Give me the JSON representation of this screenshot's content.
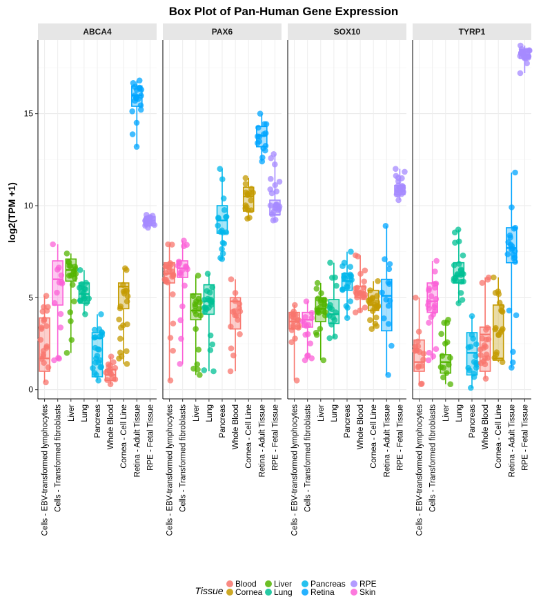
{
  "chart_data": {
    "type": "box",
    "title": "Box Plot of Pan-Human Gene Expression",
    "xlabel": "",
    "ylabel": "log2(TPM +1)",
    "ylim": [
      -0.5,
      19
    ],
    "yticks": [
      0,
      5,
      10,
      15
    ],
    "facets": [
      "ABCA4",
      "PAX6",
      "SOX10",
      "TYRP1"
    ],
    "categories": [
      "Cells - EBV-transformed lymphocytes",
      "Cells - Transformed fibroblasts",
      "Liver",
      "Lung",
      "Pancreas",
      "Whole Blood",
      "Cornea - Cell Line",
      "Retina - Adult Tissue",
      "RPE - Fetal Tissue"
    ],
    "category_tissue": [
      "Blood",
      "Skin",
      "Liver",
      "Lung",
      "Pancreas",
      "Blood",
      "Cornea",
      "Retina",
      "RPE"
    ],
    "legend": {
      "title": "Tissue",
      "position": "bottom",
      "items": [
        {
          "name": "Blood",
          "color": "#F8766D"
        },
        {
          "name": "Cornea",
          "color": "#C49A00"
        },
        {
          "name": "Liver",
          "color": "#53B400"
        },
        {
          "name": "Lung",
          "color": "#00C094"
        },
        {
          "name": "Pancreas",
          "color": "#00B6EB"
        },
        {
          "name": "Retina",
          "color": "#00A5FF"
        },
        {
          "name": "RPE",
          "color": "#A58AFF"
        },
        {
          "name": "Skin",
          "color": "#FB61D7"
        }
      ]
    },
    "boxes": {
      "ABCA4": [
        {
          "q1": 1.0,
          "median": 1.7,
          "q3": 3.9,
          "min": 0.4,
          "max": 5.1
        },
        {
          "q1": 4.6,
          "median": 6.0,
          "q3": 7.0,
          "min": 1.6,
          "max": 7.9
        },
        {
          "q1": 5.9,
          "median": 6.5,
          "q3": 7.1,
          "min": 2.0,
          "max": 7.4
        },
        {
          "q1": 4.7,
          "median": 5.2,
          "q3": 5.8,
          "min": 4.1,
          "max": 6.5
        },
        {
          "q1": 0.7,
          "median": 2.8,
          "q3": 3.1,
          "min": 0.5,
          "max": 4.1
        },
        {
          "q1": 0.5,
          "median": 0.8,
          "q3": 1.1,
          "min": 0.3,
          "max": 1.8
        },
        {
          "q1": 4.4,
          "median": 5.6,
          "q3": 5.8,
          "min": 1.4,
          "max": 6.6
        },
        {
          "q1": 15.4,
          "median": 16.0,
          "q3": 16.5,
          "min": 13.2,
          "max": 16.8
        },
        {
          "q1": 8.9,
          "median": 9.2,
          "q3": 9.4,
          "min": 8.8,
          "max": 9.5
        }
      ],
      "PAX6": [
        {
          "q1": 5.8,
          "median": 6.3,
          "q3": 6.9,
          "min": 0.5,
          "max": 7.9
        },
        {
          "q1": 6.1,
          "median": 6.6,
          "q3": 7.0,
          "min": 1.4,
          "max": 8.1
        },
        {
          "q1": 3.8,
          "median": 4.3,
          "q3": 5.2,
          "min": 0.8,
          "max": 6.2
        },
        {
          "q1": 4.1,
          "median": 4.8,
          "q3": 5.7,
          "min": 1.0,
          "max": 6.3
        },
        {
          "q1": 8.5,
          "median": 9.2,
          "q3": 10.0,
          "min": 7.1,
          "max": 12.0
        },
        {
          "q1": 3.3,
          "median": 4.8,
          "q3": 5.0,
          "min": 1.0,
          "max": 6.0
        },
        {
          "q1": 9.7,
          "median": 10.5,
          "q3": 11.0,
          "min": 9.3,
          "max": 11.5
        },
        {
          "q1": 13.2,
          "median": 13.8,
          "q3": 14.3,
          "min": 12.4,
          "max": 15.0
        },
        {
          "q1": 9.5,
          "median": 9.5,
          "q3": 10.3,
          "min": 9.2,
          "max": 12.8
        }
      ],
      "SOX10": [
        {
          "q1": 3.3,
          "median": 3.7,
          "q3": 4.2,
          "min": 0.5,
          "max": 4.6
        },
        {
          "q1": 3.4,
          "median": 3.8,
          "q3": 4.2,
          "min": 1.6,
          "max": 4.8
        },
        {
          "q1": 3.7,
          "median": 4.4,
          "q3": 5.0,
          "min": 1.6,
          "max": 5.8
        },
        {
          "q1": 3.6,
          "median": 4.1,
          "q3": 4.9,
          "min": 2.8,
          "max": 6.9
        },
        {
          "q1": 5.4,
          "median": 5.9,
          "q3": 6.3,
          "min": 3.9,
          "max": 7.5
        },
        {
          "q1": 5.0,
          "median": 5.3,
          "q3": 5.6,
          "min": 4.2,
          "max": 7.3
        },
        {
          "q1": 4.3,
          "median": 4.6,
          "q3": 5.4,
          "min": 3.3,
          "max": 5.9
        },
        {
          "q1": 3.2,
          "median": 5.1,
          "q3": 6.0,
          "min": 0.8,
          "max": 8.9
        },
        {
          "q1": 10.6,
          "median": 10.8,
          "q3": 11.1,
          "min": 10.3,
          "max": 12.0
        }
      ],
      "TYRP1": [
        {
          "q1": 1.0,
          "median": 1.5,
          "q3": 2.7,
          "min": 0.3,
          "max": 5.0
        },
        {
          "q1": 4.2,
          "median": 4.8,
          "q3": 5.8,
          "min": 1.6,
          "max": 7.0
        },
        {
          "q1": 0.9,
          "median": 1.5,
          "q3": 1.9,
          "min": 0.3,
          "max": 3.8
        },
        {
          "q1": 5.8,
          "median": 6.2,
          "q3": 6.9,
          "min": 4.7,
          "max": 8.7
        },
        {
          "q1": 0.8,
          "median": 2.0,
          "q3": 3.1,
          "min": 0.1,
          "max": 4.0
        },
        {
          "q1": 1.0,
          "median": 3.0,
          "q3": 3.4,
          "min": 0.6,
          "max": 6.1
        },
        {
          "q1": 1.6,
          "median": 1.7,
          "q3": 4.6,
          "min": 1.5,
          "max": 6.1
        },
        {
          "q1": 6.9,
          "median": 7.7,
          "q3": 8.8,
          "min": 1.2,
          "max": 11.8
        },
        {
          "q1": 18.0,
          "median": 18.2,
          "q3": 18.5,
          "min": 17.2,
          "max": 18.7
        }
      ]
    }
  }
}
